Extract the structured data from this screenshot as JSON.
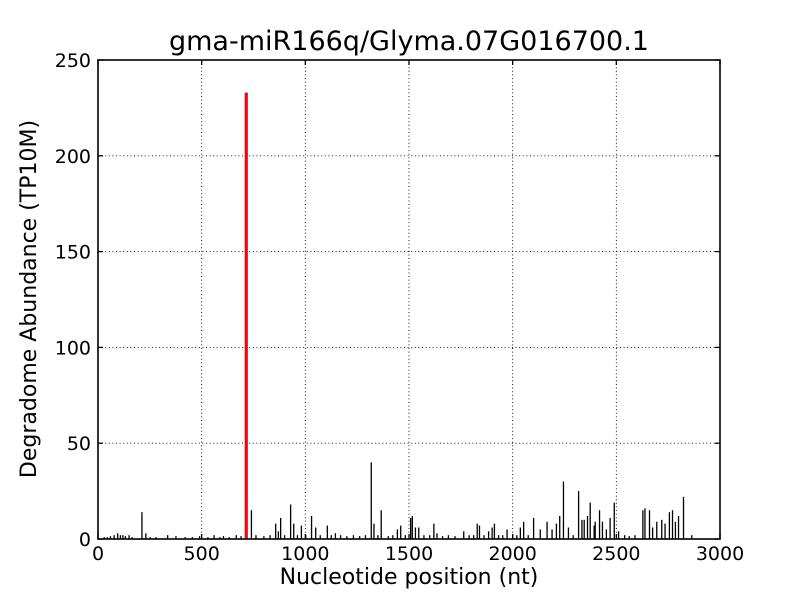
{
  "figure": {
    "background": "#ffffff",
    "text_color": "#000000"
  },
  "chart_data": {
    "type": "bar",
    "title": "gma-miR166q/Glyma.07G016700.1",
    "xlabel": "Nucleotide position (nt)",
    "ylabel": "Degradome Abundance (TP10M)",
    "xlim": [
      0,
      3000
    ],
    "ylim": [
      0,
      250
    ],
    "xticks": [
      0,
      500,
      1000,
      1500,
      2000,
      2500,
      3000
    ],
    "yticks": [
      0,
      50,
      100,
      150,
      200,
      250
    ],
    "grid": true,
    "grid_linestyle": "dotted",
    "bar_color": "#000000",
    "highlight_bar": {
      "x": 715,
      "value": 233,
      "color": "#ff0000"
    },
    "points": [
      [
        30,
        1
      ],
      [
        45,
        1
      ],
      [
        60,
        1.5
      ],
      [
        78,
        2
      ],
      [
        95,
        3
      ],
      [
        108,
        2
      ],
      [
        120,
        2
      ],
      [
        132,
        1.5
      ],
      [
        150,
        2
      ],
      [
        165,
        1
      ],
      [
        212,
        14
      ],
      [
        231,
        3
      ],
      [
        252,
        1
      ],
      [
        280,
        1
      ],
      [
        336,
        2
      ],
      [
        376,
        1.5
      ],
      [
        420,
        1
      ],
      [
        455,
        1
      ],
      [
        490,
        1.5
      ],
      [
        530,
        1
      ],
      [
        560,
        2
      ],
      [
        588,
        1
      ],
      [
        605,
        1.5
      ],
      [
        633,
        1
      ],
      [
        667,
        2
      ],
      [
        690,
        1.5
      ],
      [
        740,
        15
      ],
      [
        762,
        2
      ],
      [
        800,
        1.5
      ],
      [
        830,
        2
      ],
      [
        857,
        8
      ],
      [
        870,
        4
      ],
      [
        881,
        11
      ],
      [
        900,
        2
      ],
      [
        929,
        18
      ],
      [
        944,
        8
      ],
      [
        962,
        2
      ],
      [
        981,
        7
      ],
      [
        1002,
        2
      ],
      [
        1030,
        12
      ],
      [
        1050,
        6
      ],
      [
        1072,
        2
      ],
      [
        1106,
        7
      ],
      [
        1125,
        2
      ],
      [
        1145,
        3
      ],
      [
        1170,
        2
      ],
      [
        1200,
        1.5
      ],
      [
        1232,
        2
      ],
      [
        1262,
        1.5
      ],
      [
        1290,
        2
      ],
      [
        1318,
        40
      ],
      [
        1331,
        8
      ],
      [
        1350,
        2
      ],
      [
        1366,
        15
      ],
      [
        1400,
        1.5
      ],
      [
        1422,
        2
      ],
      [
        1444,
        5
      ],
      [
        1460,
        7
      ],
      [
        1482,
        2
      ],
      [
        1508,
        11
      ],
      [
        1516,
        12
      ],
      [
        1531,
        6
      ],
      [
        1547,
        6
      ],
      [
        1572,
        2
      ],
      [
        1600,
        2
      ],
      [
        1620,
        8
      ],
      [
        1635,
        3
      ],
      [
        1662,
        1.5
      ],
      [
        1690,
        2
      ],
      [
        1722,
        1.5
      ],
      [
        1764,
        4
      ],
      [
        1790,
        2
      ],
      [
        1812,
        2
      ],
      [
        1829,
        8
      ],
      [
        1840,
        7
      ],
      [
        1862,
        2
      ],
      [
        1884,
        4
      ],
      [
        1901,
        6
      ],
      [
        1912,
        8
      ],
      [
        1932,
        2
      ],
      [
        1952,
        2
      ],
      [
        1973,
        5
      ],
      [
        2000,
        2
      ],
      [
        2020,
        2
      ],
      [
        2037,
        6
      ],
      [
        2053,
        9
      ],
      [
        2075,
        2
      ],
      [
        2101,
        11
      ],
      [
        2133,
        5
      ],
      [
        2166,
        9
      ],
      [
        2190,
        5
      ],
      [
        2211,
        8
      ],
      [
        2227,
        12
      ],
      [
        2245,
        30
      ],
      [
        2269,
        6
      ],
      [
        2292,
        2
      ],
      [
        2318,
        25
      ],
      [
        2334,
        10
      ],
      [
        2345,
        10
      ],
      [
        2361,
        12
      ],
      [
        2374,
        19
      ],
      [
        2393,
        7
      ],
      [
        2398,
        9
      ],
      [
        2419,
        15
      ],
      [
        2433,
        9
      ],
      [
        2452,
        5
      ],
      [
        2470,
        11
      ],
      [
        2490,
        19
      ],
      [
        2511,
        4
      ],
      [
        2540,
        2
      ],
      [
        2562,
        1.5
      ],
      [
        2590,
        2
      ],
      [
        2628,
        15
      ],
      [
        2638,
        16
      ],
      [
        2660,
        15
      ],
      [
        2675,
        6
      ],
      [
        2695,
        9
      ],
      [
        2719,
        10
      ],
      [
        2735,
        8
      ],
      [
        2756,
        14
      ],
      [
        2771,
        15
      ],
      [
        2785,
        9
      ],
      [
        2800,
        12
      ],
      [
        2824,
        22
      ],
      [
        2864,
        2
      ]
    ]
  }
}
